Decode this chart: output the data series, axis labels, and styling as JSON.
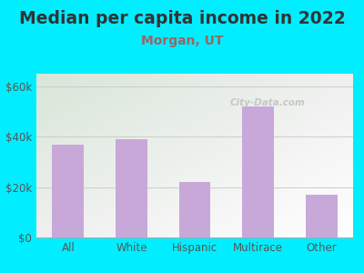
{
  "title": "Median per capita income in 2022",
  "subtitle": "Morgan, UT",
  "categories": [
    "All",
    "White",
    "Hispanic",
    "Multirace",
    "Other"
  ],
  "values": [
    37000,
    39000,
    22000,
    52000,
    17000
  ],
  "bar_color": "#c8a8d8",
  "title_fontsize": 13.5,
  "subtitle_fontsize": 10,
  "subtitle_color": "#996666",
  "title_color": "#333333",
  "background_outer": "#00eeff",
  "ytick_labels": [
    "$0",
    "$20k",
    "$40k",
    "$60k"
  ],
  "ytick_values": [
    0,
    20000,
    40000,
    60000
  ],
  "ylim": [
    0,
    65000
  ],
  "watermark": "City-Data.com",
  "watermark_color": "#c0c0c0",
  "tick_color": "#555555",
  "grid_color": "#cccccc"
}
